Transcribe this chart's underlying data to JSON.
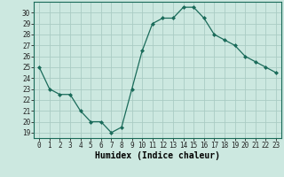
{
  "x": [
    0,
    1,
    2,
    3,
    4,
    5,
    6,
    7,
    8,
    9,
    10,
    11,
    12,
    13,
    14,
    15,
    16,
    17,
    18,
    19,
    20,
    21,
    22,
    23
  ],
  "y": [
    25.0,
    23.0,
    22.5,
    22.5,
    21.0,
    20.0,
    20.0,
    19.0,
    19.5,
    23.0,
    26.5,
    29.0,
    29.5,
    29.5,
    30.5,
    30.5,
    29.5,
    28.0,
    27.5,
    27.0,
    26.0,
    25.5,
    25.0,
    24.5
  ],
  "line_color": "#1a6b5a",
  "marker": "D",
  "marker_size": 2.0,
  "bg_color": "#cce8e0",
  "grid_color": "#aaccc4",
  "xlabel": "Humidex (Indice chaleur)",
  "ylim": [
    18.5,
    31.0
  ],
  "yticks": [
    19,
    20,
    21,
    22,
    23,
    24,
    25,
    26,
    27,
    28,
    29,
    30
  ],
  "xticks": [
    0,
    1,
    2,
    3,
    4,
    5,
    6,
    7,
    8,
    9,
    10,
    11,
    12,
    13,
    14,
    15,
    16,
    17,
    18,
    19,
    20,
    21,
    22,
    23
  ],
  "xlim": [
    -0.5,
    23.5
  ],
  "tick_fontsize": 5.5,
  "xlabel_fontsize": 7.0,
  "spine_color": "#1a6b5a"
}
